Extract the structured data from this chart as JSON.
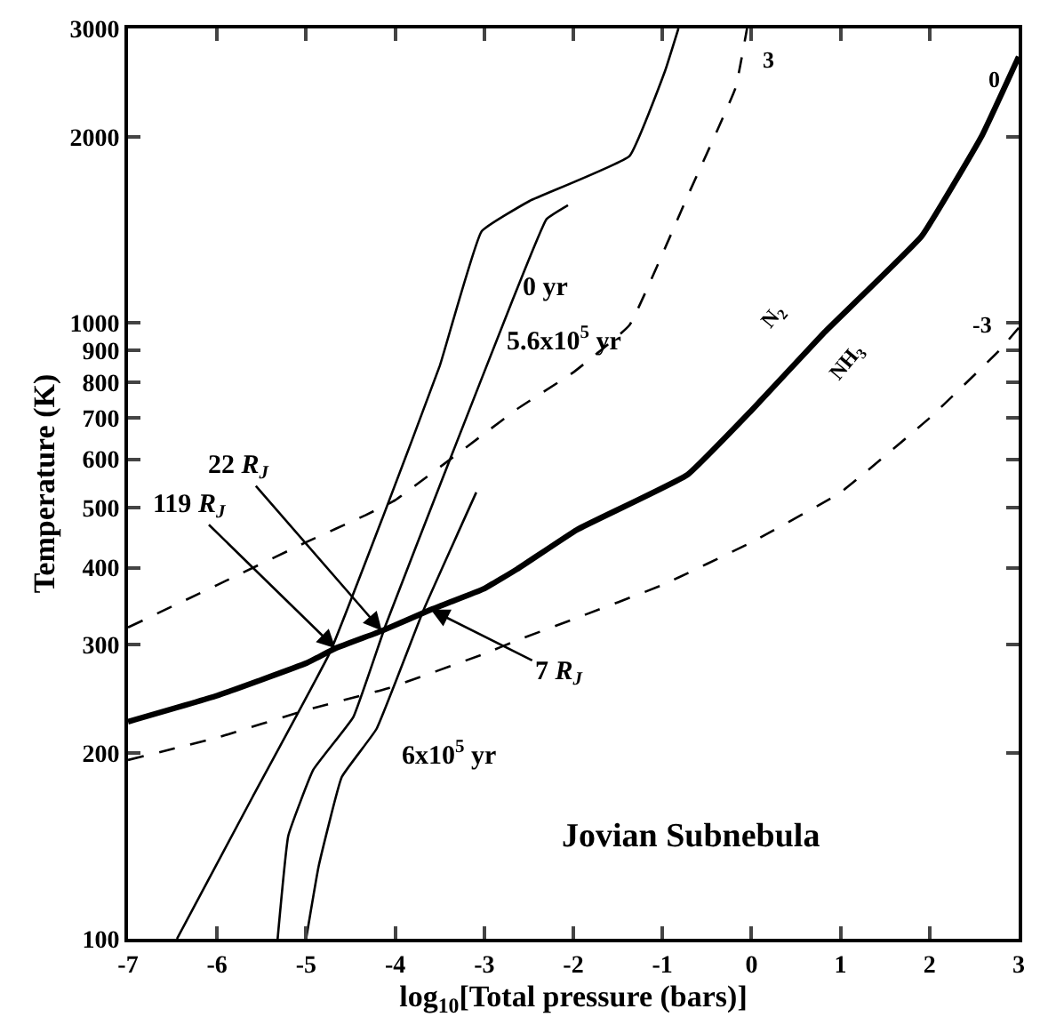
{
  "chart_data": {
    "type": "line",
    "xlabel": "log$_{10}$[Total pressure (bars)]",
    "ylabel": "Temperature (K)",
    "log": "y",
    "marker": "none",
    "xlim": [
      -7,
      3
    ],
    "xticks": [
      -7,
      -6,
      -5,
      -4,
      -3,
      -2,
      -1,
      0,
      1,
      2,
      3
    ],
    "ylim": [
      100,
      3000
    ],
    "yticks": [
      100,
      200,
      300,
      400,
      500,
      600,
      700,
      800,
      900,
      1000,
      2000,
      3000
    ],
    "series": [
      {
        "color": "#000000",
        "line_style": "solid",
        "x": [
          -7,
          -6,
          -5,
          -4.67,
          -4.15,
          -3.6,
          -3,
          -2.63,
          -1.96,
          -0.72,
          0,
          0.82,
          1.91,
          2.58,
          3
        ],
        "values": [
          225,
          248,
          280,
          296,
          316,
          342,
          370,
          398,
          461,
          566,
          720,
          964,
          1380,
          2000,
          2700
        ]
      },
      {
        "color": "#000000",
        "line_style": "dashed",
        "x": [
          -7,
          -6,
          -5,
          -4.33,
          -4,
          -3,
          -2.63,
          -2,
          -1.37,
          -0.72,
          -0.18,
          -0.05
        ],
        "values": [
          320,
          375,
          440,
          487,
          515,
          660,
          724,
          830,
          990,
          1600,
          2400,
          3000
        ]
      },
      {
        "color": "#000000",
        "line_style": "dashed",
        "x": [
          -7,
          -6,
          -5,
          -4.08,
          -3,
          -2.63,
          -2,
          -1,
          0,
          1,
          2,
          2.78,
          3
        ],
        "values": [
          195,
          212,
          235,
          255,
          290,
          305,
          330,
          375,
          440,
          530,
          700,
          900,
          980
        ]
      },
      {
        "color": "#000000",
        "line_style": "solid",
        "x": [
          -6.45,
          -5.6,
          -4.73,
          -4.13,
          -3.5,
          -3.03,
          -2.49,
          -1.37,
          -0.97,
          -0.82
        ],
        "values": [
          100,
          170,
          292,
          487,
          850,
          1406,
          1575,
          1862,
          2560,
          3000
        ]
      },
      {
        "color": "#000000",
        "line_style": "solid",
        "x": [
          -5.32,
          -5.2,
          -4.92,
          -4.47,
          -4.11,
          -3.42,
          -2.69,
          -2.3,
          -2.06
        ],
        "values": [
          100,
          147,
          188,
          229,
          322,
          582,
          1080,
          1472,
          1550
        ]
      },
      {
        "color": "#000000",
        "line_style": "solid",
        "x": [
          -5.0,
          -4.86,
          -4.6,
          -4.21,
          -3.68,
          -3.09
        ],
        "values": [
          100,
          131,
          183,
          219,
          342,
          530
        ]
      }
    ],
    "annotations": [
      "0 yr",
      "5.6x10$^{5}$ yr",
      "6x10$^{5}$ yr",
      {
        "text": "119 R$_{J}$",
        "x": -4.67,
        "y": 296
      },
      {
        "text": "22 R$_{J}$",
        "x": -4.15,
        "y": 316
      },
      {
        "text": "7 R$_{J}$",
        "x": -3.6,
        "y": 342
      },
      "N$_{2}$",
      "NH$_{3}$",
      "3",
      "0",
      "-3",
      "Jovian Subnebula"
    ]
  }
}
